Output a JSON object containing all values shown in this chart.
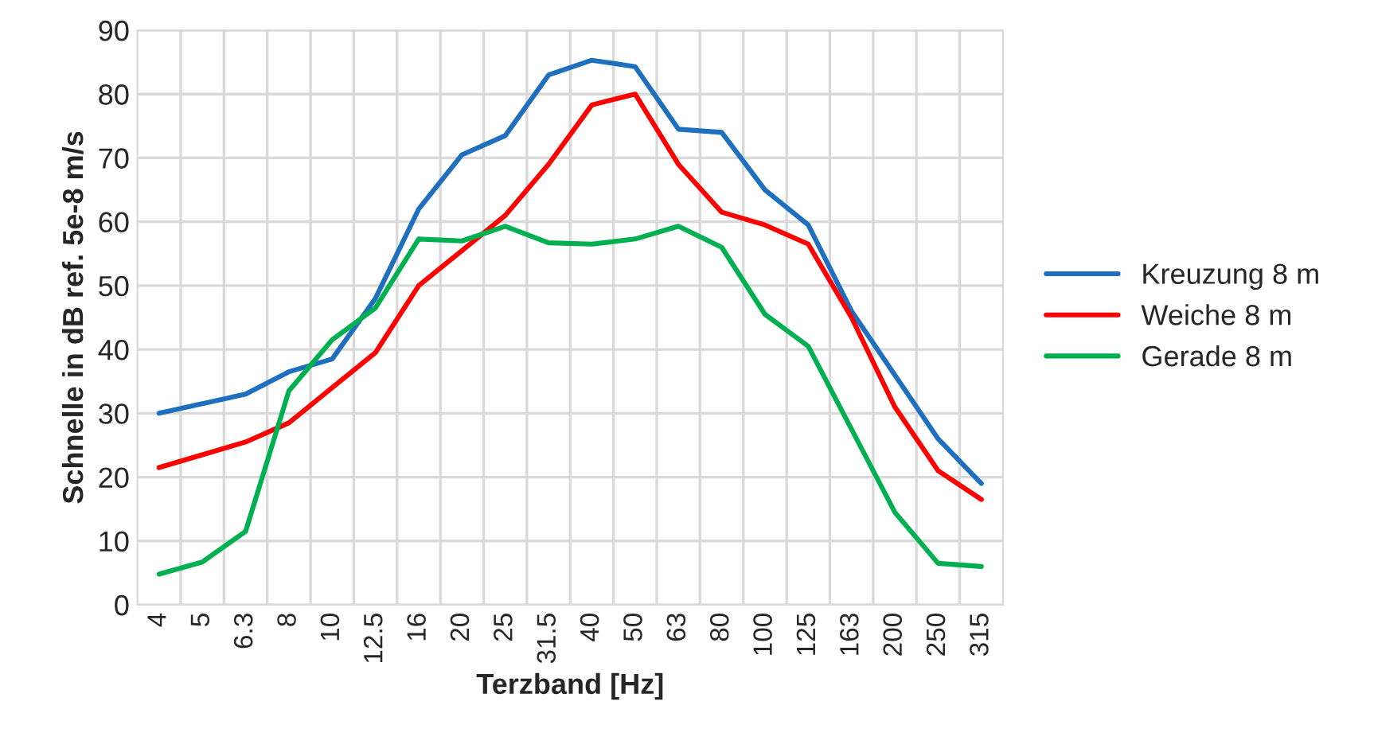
{
  "chart_data": {
    "type": "line",
    "xlabel": "Terzband [Hz]",
    "ylabel": "Schnelle in dB ref. 5e-8 m/s",
    "categories": [
      "4",
      "5",
      "6.3",
      "8",
      "10",
      "12.5",
      "16",
      "20",
      "25",
      "31.5",
      "40",
      "50",
      "63",
      "80",
      "100",
      "125",
      "163",
      "200",
      "250",
      "315"
    ],
    "series": [
      {
        "name": "Kreuzung 8 m",
        "color": "#1f6fbf",
        "values": [
          30,
          31.5,
          33,
          36.5,
          38.5,
          48,
          62,
          70.5,
          73.5,
          83,
          85.3,
          84.3,
          74.5,
          74,
          65,
          59.5,
          46,
          36,
          26,
          19
        ]
      },
      {
        "name": "Weiche 8 m",
        "color": "#ff0000",
        "values": [
          21.5,
          23.5,
          25.5,
          28.5,
          34,
          39.5,
          50,
          55.5,
          61,
          69,
          78.3,
          80,
          69,
          61.5,
          59.5,
          56.5,
          45,
          31,
          21,
          16.5
        ]
      },
      {
        "name": "Gerade 8 m",
        "color": "#00b050",
        "values": [
          4.8,
          6.7,
          11.5,
          33.5,
          41.5,
          46.5,
          57.3,
          57,
          59.3,
          56.7,
          56.5,
          57.3,
          59.3,
          56,
          45.5,
          40.5,
          27.5,
          14.5,
          6.5,
          6
        ]
      }
    ],
    "ylim": [
      0,
      90
    ],
    "yticks": [
      0,
      10,
      20,
      30,
      40,
      50,
      60,
      70,
      80,
      90
    ],
    "grid": true,
    "legend": "right"
  }
}
